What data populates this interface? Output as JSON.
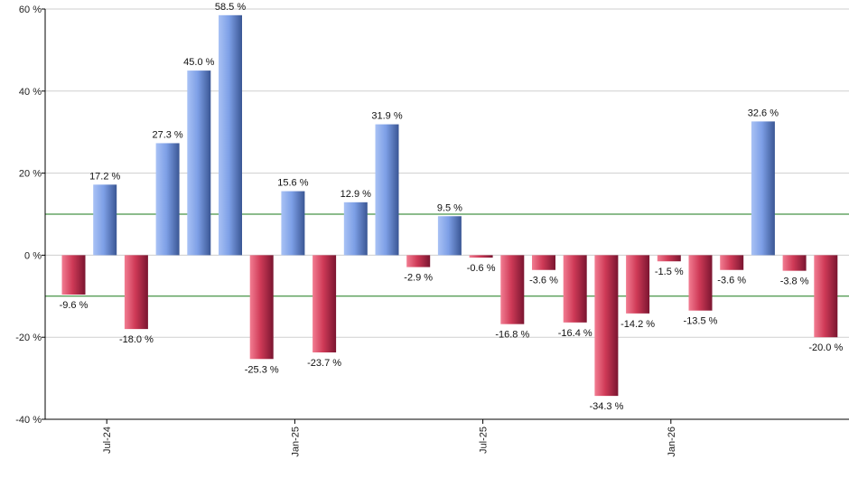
{
  "chart_data": {
    "type": "bar",
    "title": "",
    "xlabel": "",
    "ylabel": "",
    "ylim": [
      -40,
      60
    ],
    "y_ticks": [
      -40,
      -20,
      0,
      20,
      40,
      60
    ],
    "y_tick_labels": [
      "-40 %",
      "-20 %",
      "0 %",
      "20 %",
      "40 %",
      "60 %"
    ],
    "x_tick_labels": [
      {
        "label": "Jul-24",
        "index": 1
      },
      {
        "label": "Jan-25",
        "index": 7
      },
      {
        "label": "Jul-25",
        "index": 13
      },
      {
        "label": "Jan-26",
        "index": 19
      }
    ],
    "values": [
      -9.6,
      17.2,
      -18.0,
      27.3,
      45.0,
      58.5,
      -25.3,
      15.6,
      -23.7,
      12.9,
      31.9,
      -2.9,
      9.5,
      -0.6,
      -16.8,
      -3.6,
      -16.4,
      -34.3,
      -14.2,
      -1.5,
      -13.5,
      -3.6,
      32.6,
      -3.8,
      -20.0
    ],
    "value_labels": [
      "-9.6 %",
      "17.2 %",
      "-18.0 %",
      "27.3 %",
      "45.0 %",
      "58.5 %",
      "-25.3 %",
      "15.6 %",
      "-23.7 %",
      "12.9 %",
      "31.9 %",
      "-2.9 %",
      "9.5 %",
      "-0.6 %",
      "-16.8 %",
      "-3.6 %",
      "-16.4 %",
      "-34.3 %",
      "-14.2 %",
      "-1.5 %",
      "-13.5 %",
      "-3.6 %",
      "32.6 %",
      "-3.8 %",
      "-20.0 %"
    ],
    "reference_lines": [
      10,
      -10
    ],
    "grid": true,
    "colors": {
      "positive": "#6f8fd6",
      "negative": "#c8304e",
      "reference_line": "#1a7a1a",
      "grid": "#cfcfcf",
      "axis": "#000000"
    }
  }
}
